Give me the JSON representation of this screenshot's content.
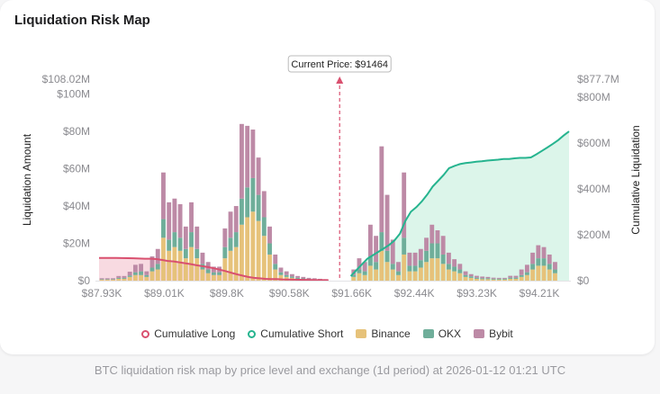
{
  "title": "Liquidation Risk Map",
  "caption": "BTC liquidation risk map by price level and exchange (1d period) at 2026-01-12 01:21 UTC",
  "colors": {
    "binance": "#e6c27a",
    "okx": "#6fae9a",
    "bybit": "#bd8aa6",
    "long_line": "#d9506f",
    "long_fill": "#f7d4dc",
    "short_line": "#26b48f",
    "short_fill": "#d6f3e6",
    "price_line": "#d9506f"
  },
  "legend": [
    {
      "key": "long",
      "label": "Cumulative Long"
    },
    {
      "key": "short",
      "label": "Cumulative Short"
    },
    {
      "key": "binance",
      "label": "Binance"
    },
    {
      "key": "okx",
      "label": "OKX"
    },
    {
      "key": "bybit",
      "label": "Bybit"
    }
  ],
  "chart_data": {
    "type": "bar",
    "title": "Liquidation Risk Map",
    "ylabel": "Liquidation Amount",
    "y2label": "Cumulative Liquidation",
    "ylim": [
      0,
      108.02
    ],
    "y2lim": [
      0,
      877.7
    ],
    "y_max_label": "$108.02M",
    "y2_max_label": "$877.7M",
    "y_ticks": [
      {
        "v": 0,
        "label": "$0"
      },
      {
        "v": 20,
        "label": "$20M"
      },
      {
        "v": 40,
        "label": "$40M"
      },
      {
        "v": 60,
        "label": "$60M"
      },
      {
        "v": 80,
        "label": "$80M"
      },
      {
        "v": 100,
        "label": "$100M"
      }
    ],
    "y2_ticks": [
      {
        "v": 0,
        "label": "$0"
      },
      {
        "v": 200,
        "label": "$200M"
      },
      {
        "v": 400,
        "label": "$400M"
      },
      {
        "v": 600,
        "label": "$600M"
      },
      {
        "v": 800,
        "label": "$800M"
      }
    ],
    "x_ticks": [
      "$87.93K",
      "$89.01K",
      "$89.8K",
      "$90.58K",
      "$91.66K",
      "$92.44K",
      "$93.23K",
      "$94.21K"
    ],
    "current_price_label": "Current Price: $91464",
    "bar_count": 84,
    "current_price_index": 42,
    "series": [
      {
        "name": "Binance",
        "values": [
          0.5,
          0.5,
          0.5,
          1,
          1,
          2,
          3,
          3,
          2,
          5,
          6,
          23,
          16,
          18,
          16,
          12,
          18,
          12,
          6,
          4,
          3,
          3,
          12,
          16,
          18,
          30,
          34,
          37,
          32,
          24,
          14,
          6,
          3,
          2,
          1.5,
          1,
          0.8,
          0.6,
          0.5,
          0.4,
          0.3,
          0,
          0,
          0,
          0,
          2,
          4,
          3,
          8,
          6,
          16,
          10,
          6,
          3,
          14,
          5,
          5,
          7,
          10,
          12,
          12,
          9,
          6,
          5,
          4,
          2,
          1.5,
          1,
          0.8,
          0.8,
          0.6,
          0.6,
          0.6,
          1,
          1,
          2,
          3,
          6,
          8,
          8,
          6,
          4
        ]
      },
      {
        "name": "OKX",
        "values": [
          0.3,
          0.3,
          0.3,
          0.5,
          0.5,
          0.8,
          1.5,
          2,
          1,
          2,
          3,
          10,
          6,
          8,
          7,
          5,
          8,
          5,
          3,
          2,
          1.5,
          1.5,
          6,
          7,
          8,
          14,
          16,
          18,
          14,
          10,
          6,
          3,
          1.5,
          1,
          0.7,
          0.5,
          0.4,
          0.3,
          0.3,
          0.2,
          0.2,
          0,
          0,
          0,
          0,
          1,
          2,
          2,
          5,
          4,
          10,
          6,
          3,
          2,
          9,
          3,
          3,
          4,
          6,
          8,
          8,
          5,
          3,
          2.5,
          2,
          1,
          0.8,
          0.6,
          0.5,
          0.5,
          0.4,
          0.4,
          0.4,
          0.6,
          0.6,
          1,
          1.5,
          3,
          4,
          4,
          3,
          2
        ]
      },
      {
        "name": "Bybit",
        "values": [
          0.5,
          0.5,
          0.5,
          1,
          1,
          2,
          4,
          4,
          2,
          6,
          8,
          25,
          20,
          18,
          18,
          12,
          16,
          12,
          6,
          4,
          3,
          3,
          10,
          14,
          14,
          40,
          33,
          26,
          20,
          14,
          9,
          5,
          2.5,
          2,
          1.3,
          1,
          0.8,
          0.6,
          0.5,
          0.4,
          0.3,
          0,
          0,
          0,
          0,
          3,
          6,
          5,
          17,
          14,
          46,
          30,
          13,
          5,
          35,
          7,
          7,
          6,
          7,
          10,
          7,
          10,
          6,
          4,
          3,
          2,
          1.2,
          1,
          0.9,
          0.7,
          0.6,
          0.5,
          0.5,
          1,
          1,
          3,
          4,
          6,
          7,
          6,
          5,
          4
        ]
      }
    ],
    "cumulative_long": [
      99,
      99,
      99,
      98.7,
      98.4,
      98.1,
      97.4,
      96.5,
      95.6,
      95.6,
      94,
      90,
      86,
      84,
      80,
      76,
      72,
      67,
      63,
      59,
      54,
      48,
      42,
      35,
      28,
      22,
      16,
      12,
      10,
      8,
      7,
      6.5,
      5.5,
      5,
      4.5,
      4,
      3.5,
      3,
      2.5,
      2.5,
      2
    ],
    "cumulative_short": [
      20,
      45,
      70,
      95,
      110,
      125,
      140,
      155,
      175,
      205,
      260,
      300,
      320,
      345,
      375,
      410,
      435,
      460,
      490,
      500,
      508,
      512,
      515,
      518,
      520,
      523,
      525,
      527,
      530,
      530,
      533,
      535,
      535,
      537,
      550,
      565,
      580,
      595,
      612,
      632,
      650
    ]
  }
}
